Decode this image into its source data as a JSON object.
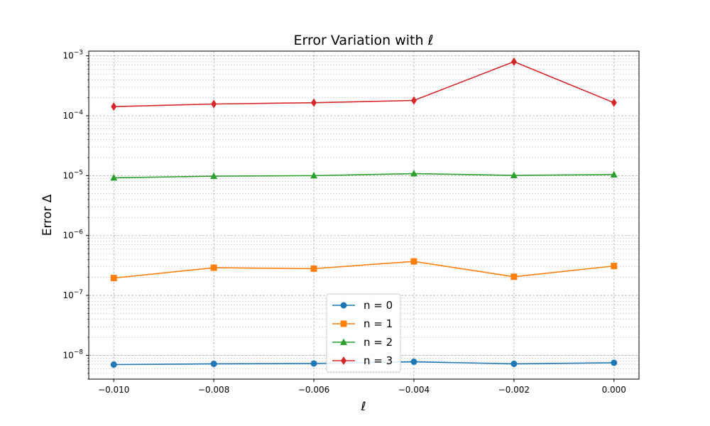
{
  "chart_data": {
    "type": "line",
    "title": "Error Variation with ℓ",
    "xlabel": "ℓ",
    "ylabel": "Error Δ",
    "y_scale": "log",
    "xlim": [
      -0.0105,
      0.0005
    ],
    "ylim": [
      4e-09,
      0.0012
    ],
    "grid": "on (major and minor)",
    "legend_placement": "lower center",
    "x": [
      -0.01,
      -0.008,
      -0.006,
      -0.004,
      -0.002,
      0.0
    ],
    "x_tick_labels": [
      "−0.010",
      "−0.008",
      "−0.006",
      "−0.004",
      "−0.002",
      "0.000"
    ],
    "y_ticks": [
      {
        "mantissa": "10",
        "exponent": "−8",
        "value": 1e-08
      },
      {
        "mantissa": "10",
        "exponent": "−7",
        "value": 1e-07
      },
      {
        "mantissa": "10",
        "exponent": "−6",
        "value": 1e-06
      },
      {
        "mantissa": "10",
        "exponent": "−5",
        "value": 1e-05
      },
      {
        "mantissa": "10",
        "exponent": "−4",
        "value": 0.0001
      },
      {
        "mantissa": "10",
        "exponent": "−3",
        "value": 0.001
      }
    ],
    "series": [
      {
        "name": "n = 0",
        "color": "#1f77b4",
        "marker": "circle",
        "values": [
          7e-09,
          7.2e-09,
          7.3e-09,
          7.8e-09,
          7.2e-09,
          7.5e-09
        ]
      },
      {
        "name": "n = 1",
        "color": "#ff7f0e",
        "marker": "square",
        "values": [
          1.95e-07,
          2.9e-07,
          2.8e-07,
          3.7e-07,
          2.05e-07,
          3.1e-07
        ]
      },
      {
        "name": "n = 2",
        "color": "#2ca02c",
        "marker": "triangle",
        "values": [
          9.2e-06,
          9.8e-06,
          1e-05,
          1.08e-05,
          1.01e-05,
          1.04e-05
        ]
      },
      {
        "name": "n = 3",
        "color": "#d62728",
        "marker": "diamond",
        "values": [
          0.000142,
          0.000157,
          0.000165,
          0.00018,
          0.0008,
          0.000165
        ]
      }
    ]
  }
}
